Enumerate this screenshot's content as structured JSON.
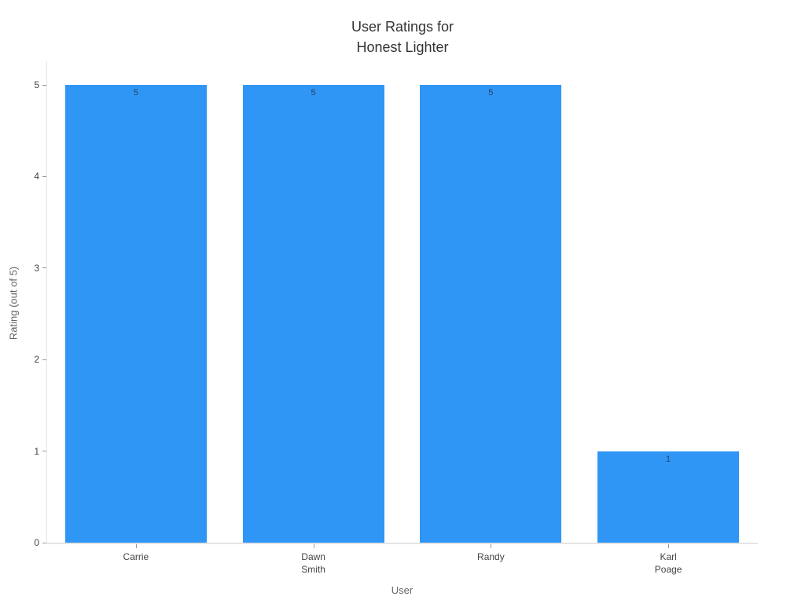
{
  "chart_data": {
    "type": "bar",
    "title": "User Ratings for\nHonest Lighter",
    "xlabel": "User",
    "ylabel": "Rating (out of 5)",
    "categories": [
      "Carrie",
      "Dawn Smith",
      "Randy",
      "Karl Poage"
    ],
    "tick_labels": [
      "Carrie",
      "Dawn\nSmith",
      "Randy",
      "Karl\nPoage"
    ],
    "values": [
      5,
      5,
      5,
      1
    ],
    "value_labels": [
      "5",
      "5",
      "5",
      "1"
    ],
    "yticks": [
      "0",
      "1",
      "2",
      "3",
      "4",
      "5"
    ],
    "ylim": [
      0,
      5.25
    ],
    "grid": false,
    "legend": "none",
    "value_label_position": "inside-top",
    "colors": {
      "bar_fill": "#2F96F5",
      "value_label": "#2a3f5f",
      "tick_label": "#444444",
      "axis_title": "#666666",
      "chart_title": "#333333",
      "axis_line": "#e3e3e3",
      "background": "#ffffff"
    }
  }
}
